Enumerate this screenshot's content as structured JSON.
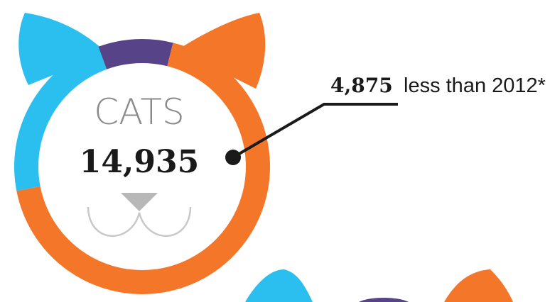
{
  "title": "CATS",
  "total": "14,935",
  "callout": {
    "value": "4,875",
    "text": "less than 2012*"
  }
}
